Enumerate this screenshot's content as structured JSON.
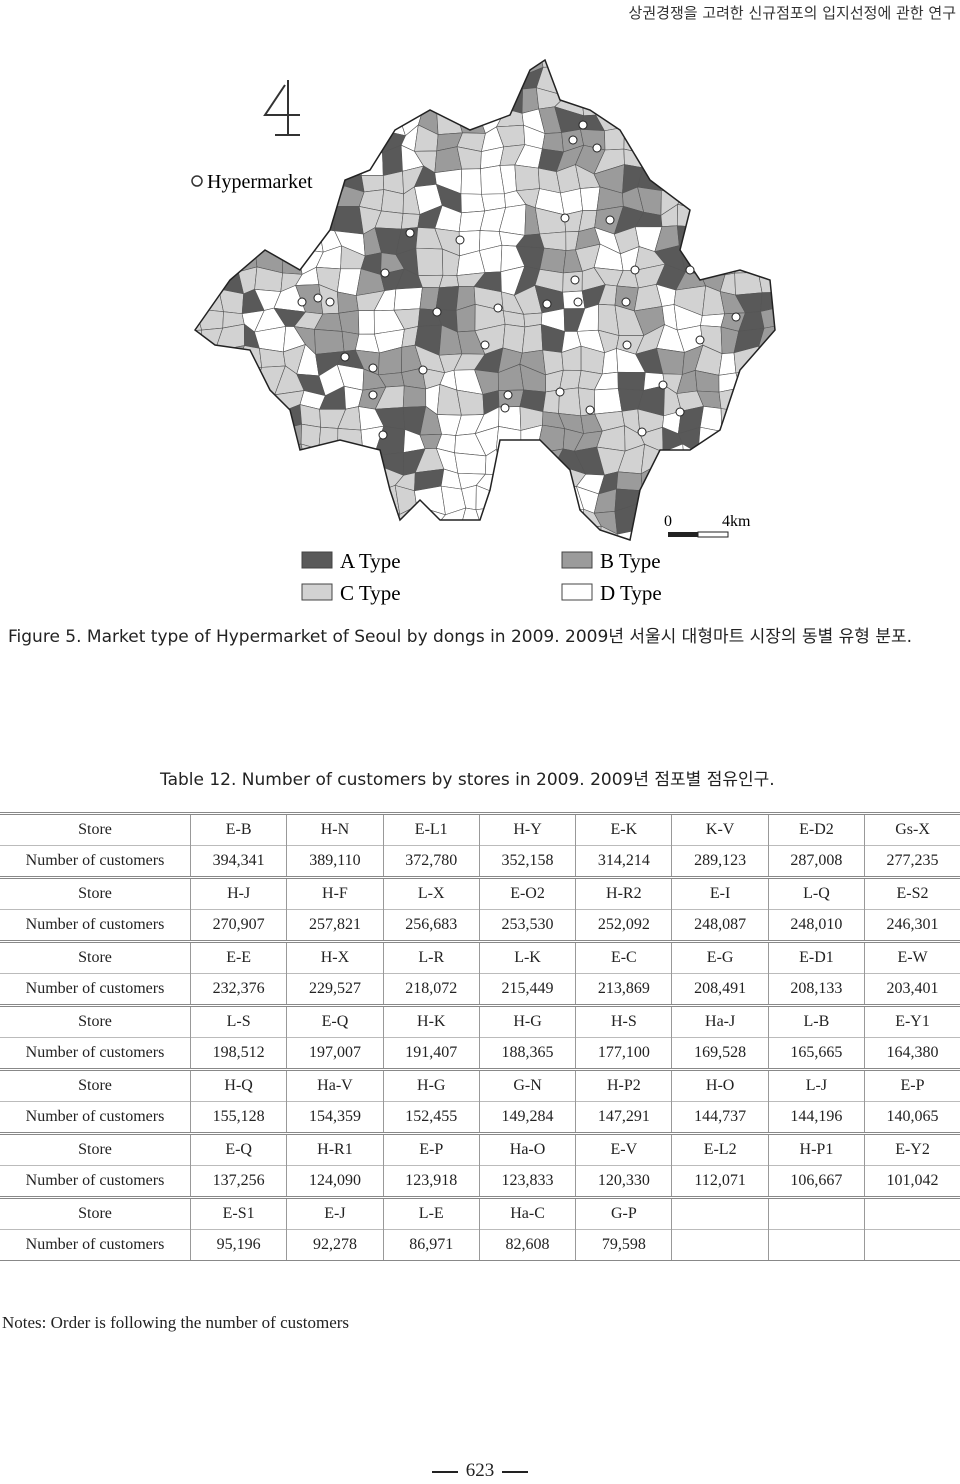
{
  "header": {
    "title": "상권경쟁을 고려한 신규점포의 입지선정에 관한 연구"
  },
  "figure": {
    "map_label": "Hypermarket",
    "scale": {
      "start": "0",
      "end": "4km"
    },
    "legend": [
      "A Type",
      "B Type",
      "C Type",
      "D Type"
    ],
    "caption": "Figure 5. Market type of Hypermarket of Seoul by dongs in 2009. 2009년 서울시 대형마트 시장의 동별 유형 분포."
  },
  "table": {
    "caption": "Table 12. Number of customers by stores in 2009. 2009년 점포별 점유인구.",
    "row_labels": [
      "Store",
      "Number of customers"
    ],
    "groups": [
      {
        "stores": [
          "E-B",
          "H-N",
          "E-L1",
          "H-Y",
          "E-K",
          "K-V",
          "E-D2",
          "Gs-X"
        ],
        "customers": [
          "394,341",
          "389,110",
          "372,780",
          "352,158",
          "314,214",
          "289,123",
          "287,008",
          "277,235"
        ]
      },
      {
        "stores": [
          "H-J",
          "H-F",
          "L-X",
          "E-O2",
          "H-R2",
          "E-I",
          "L-Q",
          "E-S2"
        ],
        "customers": [
          "270,907",
          "257,821",
          "256,683",
          "253,530",
          "252,092",
          "248,087",
          "248,010",
          "246,301"
        ]
      },
      {
        "stores": [
          "E-E",
          "H-X",
          "L-R",
          "L-K",
          "E-C",
          "E-G",
          "E-D1",
          "E-W"
        ],
        "customers": [
          "232,376",
          "229,527",
          "218,072",
          "215,449",
          "213,869",
          "208,491",
          "208,133",
          "203,401"
        ]
      },
      {
        "stores": [
          "L-S",
          "E-Q",
          "H-K",
          "H-G",
          "H-S",
          "Ha-J",
          "L-B",
          "E-Y1"
        ],
        "customers": [
          "198,512",
          "197,007",
          "191,407",
          "188,365",
          "177,100",
          "169,528",
          "165,665",
          "164,380"
        ]
      },
      {
        "stores": [
          "H-Q",
          "Ha-V",
          "H-G",
          "G-N",
          "H-P2",
          "H-O",
          "L-J",
          "E-P"
        ],
        "customers": [
          "155,128",
          "154,359",
          "152,455",
          "149,284",
          "147,291",
          "144,737",
          "144,196",
          "140,065"
        ]
      },
      {
        "stores": [
          "E-Q",
          "H-R1",
          "E-P",
          "Ha-O",
          "E-V",
          "E-L2",
          "H-P1",
          "E-Y2"
        ],
        "customers": [
          "137,256",
          "124,090",
          "123,918",
          "123,833",
          "120,330",
          "112,071",
          "106,667",
          "101,042"
        ]
      },
      {
        "stores": [
          "E-S1",
          "E-J",
          "L-E",
          "Ha-C",
          "G-P"
        ],
        "customers": [
          "95,196",
          "92,278",
          "86,971",
          "82,608",
          "79,598"
        ]
      }
    ],
    "notes": "Notes: Order is following the number of customers"
  },
  "footer": {
    "page": "623"
  }
}
